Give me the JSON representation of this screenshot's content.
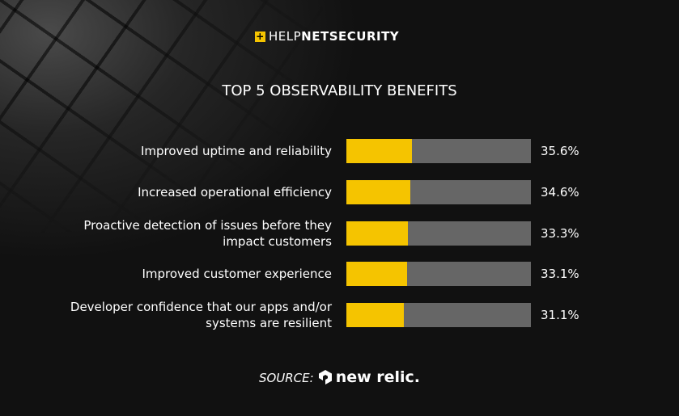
{
  "brand": {
    "light": "HELP",
    "bold": "NETSECURITY"
  },
  "chart_data": {
    "type": "bar",
    "orientation": "horizontal",
    "title": "TOP 5 OBSERVABILITY BENEFITS",
    "categories": [
      "Improved uptime and reliability",
      "Increased operational efficiency",
      "Proactive detection of issues before they impact customers",
      "Improved customer experience",
      "Developer confidence that our apps and/or systems are resilient"
    ],
    "values": [
      35.6,
      34.6,
      33.3,
      33.1,
      31.1
    ],
    "value_labels": [
      "35.6%",
      "34.6%",
      "33.3%",
      "33.1%",
      "31.1%"
    ],
    "color": "#f5c400",
    "track_color": "#666666",
    "xlim": [
      0,
      100
    ]
  },
  "source": {
    "label": "SOURCE:",
    "name": "new relic."
  }
}
